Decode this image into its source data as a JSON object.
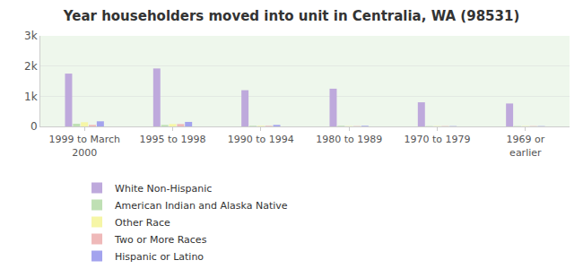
{
  "chart_data": {
    "type": "bar",
    "title": "Year householders moved into unit in Centralia, WA (98531)",
    "categories": [
      "1999 to March 2000",
      "1995 to 1998",
      "1990 to 1994",
      "1980 to 1989",
      "1970 to 1979",
      "1969 or earlier"
    ],
    "series": [
      {
        "name": "White Non-Hispanic",
        "color": "#bea9dc",
        "values": [
          1750,
          1920,
          1200,
          1250,
          800,
          760
        ]
      },
      {
        "name": "American Indian and Alaska Native",
        "color": "#bfe0b4",
        "values": [
          90,
          50,
          20,
          20,
          10,
          10
        ]
      },
      {
        "name": "Other Race",
        "color": "#f6f6a6",
        "values": [
          140,
          80,
          20,
          10,
          10,
          10
        ]
      },
      {
        "name": "Two or More Races",
        "color": "#efb9b9",
        "values": [
          50,
          80,
          20,
          10,
          10,
          10
        ]
      },
      {
        "name": "Hispanic or Latino",
        "color": "#a3a3ee",
        "values": [
          170,
          150,
          50,
          20,
          10,
          10
        ]
      }
    ],
    "ylim": [
      0,
      3000
    ],
    "yticks": [
      0,
      {
        "value": 1000,
        "label": "1k"
      },
      {
        "value": 2000,
        "label": "2k"
      },
      {
        "value": 3000,
        "label": "3k"
      }
    ],
    "grid": true,
    "legend": "bottom"
  }
}
